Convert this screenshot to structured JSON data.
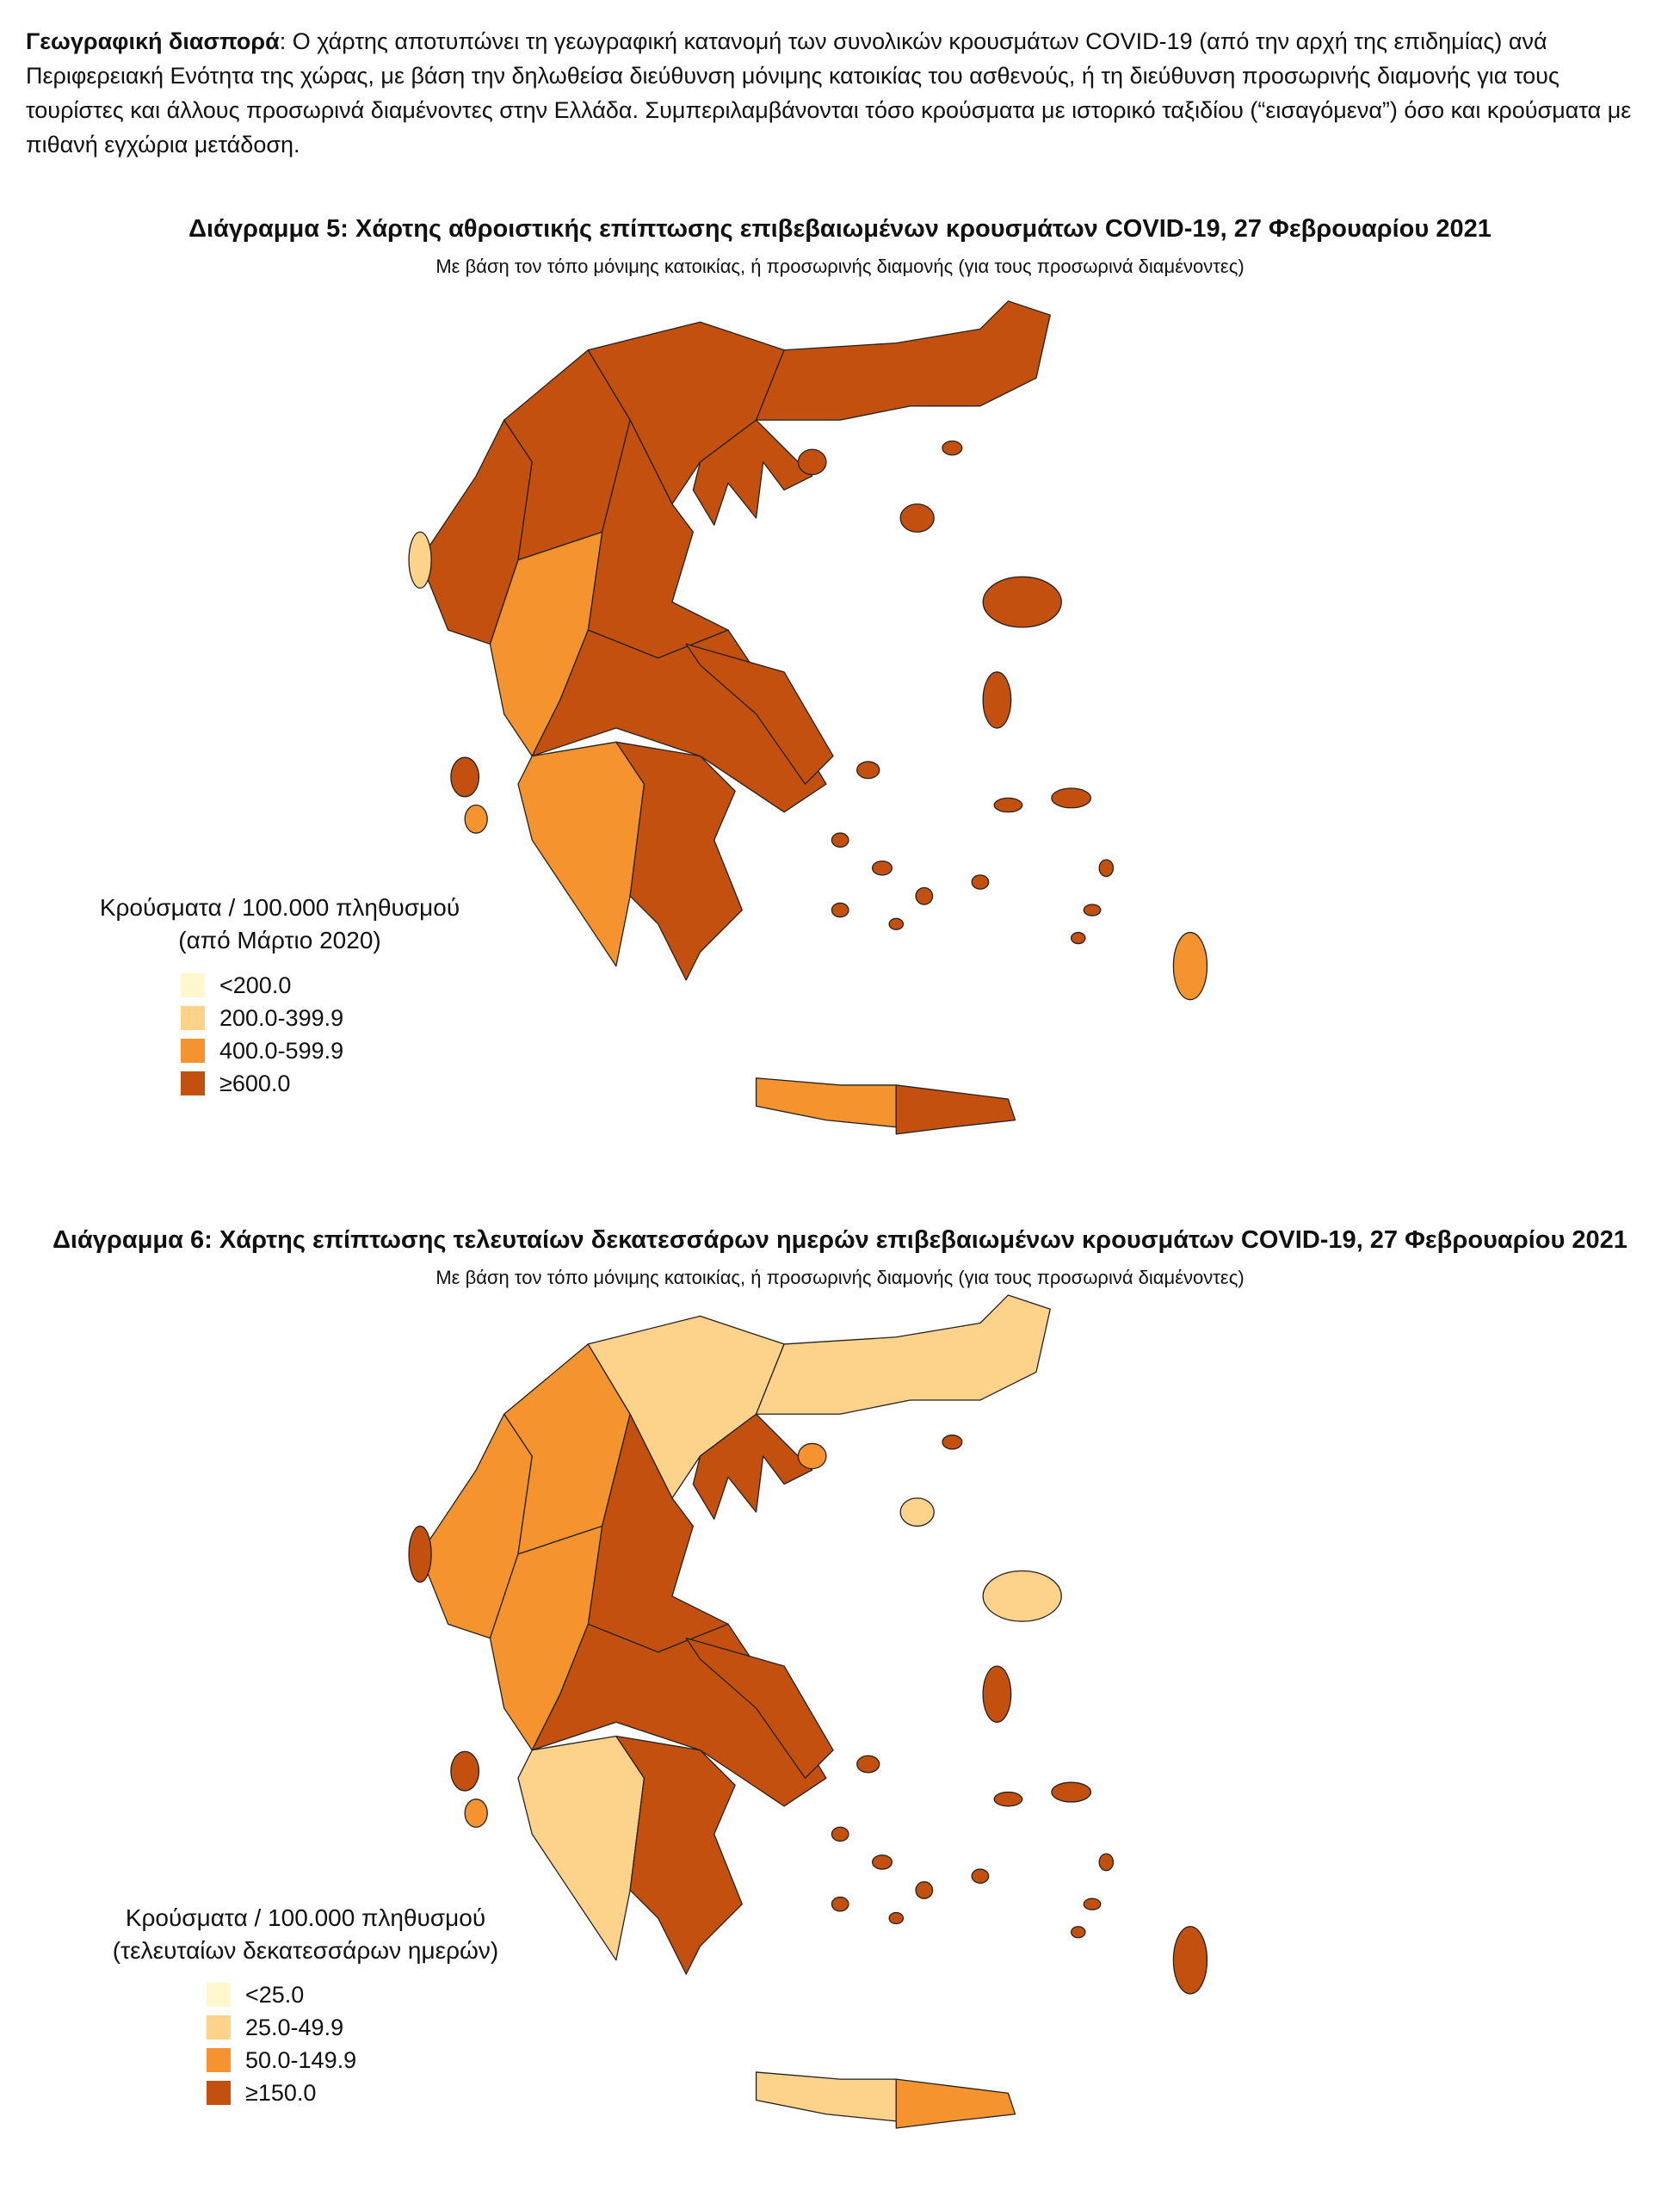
{
  "paragraph": {
    "term": "Γεωγραφική διασπορά",
    "text": ": Ο χάρτης αποτυπώνει τη γεωγραφική κατανομή των συνολικών κρουσμάτων COVID-19 (από την αρχή της επιδημίας) ανά Περιφερειακή Ενότητα της χώρας, με βάση την δηλωθείσα διεύθυνση μόνιμης κατοικίας του ασθενούς, ή τη διεύθυνση προσωρινής διαμονής για τους τουρίστες και άλλους προσωρινά διαμένοντες στην Ελλάδα. Συμπεριλαμβάνονται τόσο κρούσματα με ιστορικό ταξιδίου (“εισαγόμενα”) όσο και κρούσματα με πιθανή εγχώρια μετάδοση."
  },
  "maps": [
    {
      "title": "Διάγραμμα 5: Χάρτης αθροιστικής επίπτωσης επιβεβαιωμένων κρουσμάτων COVID-19, 27 Φεβρουαρίου 2021",
      "subtitle": "Με βάση τον τόπο μόνιμης κατοικίας, ή προσωρινής διαμονής (για τους προσωρινά διαμένοντες)",
      "legend": {
        "title": "Κρούσματα / 100.000 πληθυσμού",
        "subtitle": "(από Μάρτιο 2020)",
        "items": [
          {
            "label": "<200.0",
            "color": "#fff8cf"
          },
          {
            "label": "200.0-399.9",
            "color": "#fdd38c"
          },
          {
            "label": "400.0-599.9",
            "color": "#f5942e"
          },
          {
            "label": "≥600.0",
            "color": "#c4500f"
          }
        ]
      }
    },
    {
      "title": "Διάγραμμα 6: Χάρτης επίπτωσης τελευταίων δεκατεσσάρων ημερών επιβεβαιωμένων κρουσμάτων COVID-19, 27 Φεβρουαρίου 2021",
      "subtitle": "Με βάση τον τόπο μόνιμης κατοικίας, ή προσωρινής διαμονής (για τους προσωρινά διαμένοντες)",
      "legend": {
        "title": "Κρούσματα / 100.000 πληθυσμού",
        "subtitle": "(τελευταίων δεκατεσσάρων ημερών)",
        "items": [
          {
            "label": "<25.0",
            "color": "#fff8cf"
          },
          {
            "label": "25.0-49.9",
            "color": "#fdd38c"
          },
          {
            "label": "50.0-149.9",
            "color": "#f5942e"
          },
          {
            "label": "≥150.0",
            "color": "#c4500f"
          }
        ]
      }
    }
  ]
}
